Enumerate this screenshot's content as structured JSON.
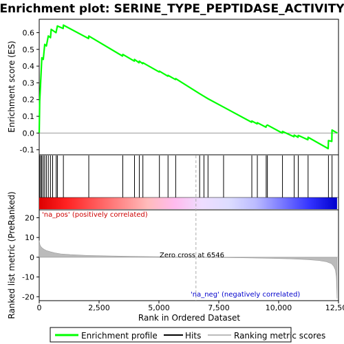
{
  "chart_data": {
    "type": "line",
    "title": "Enrichment plot: SERINE_TYPE_PEPTIDASE_ACTIVITY",
    "xlabel": "Rank in Ordered Dataset",
    "top_ylabel": "Enrichment score (ES)",
    "bottom_ylabel": "Ranked list metric (PreRanked)",
    "x_range": [
      0,
      12500
    ],
    "x_ticks": [
      0,
      2500,
      5000,
      7500,
      10000,
      12500
    ],
    "x_tick_labels": [
      "0",
      "2,500",
      "5,000",
      "7,500",
      "10,000",
      "12,500"
    ],
    "es_range": [
      -0.13,
      0.68
    ],
    "es_ticks": [
      -0.1,
      0.0,
      0.1,
      0.2,
      0.3,
      0.4,
      0.5,
      0.6
    ],
    "es_tick_labels": [
      "-0.1",
      "0.0",
      "0.1",
      "0.2",
      "0.3",
      "0.4",
      "0.5",
      "0.6"
    ],
    "metric_range": [
      -22,
      24
    ],
    "metric_ticks": [
      -20,
      -10,
      0,
      10,
      20
    ],
    "metric_tick_labels": [
      "-20",
      "-10",
      "0",
      "10",
      "20"
    ],
    "zero_cross_rank": 6546,
    "zero_cross_label": "Zero cross at 6546",
    "pos_label": "'na_pos' (positively correlated)",
    "neg_label": "'na_neg' (negatively correlated)",
    "legend": [
      {
        "name": "Enrichment profile",
        "color": "#00ff00"
      },
      {
        "name": "Hits",
        "color": "#000000"
      },
      {
        "name": "Ranking metric scores",
        "color": "#bbbbbb"
      }
    ],
    "hits": [
      20,
      70,
      110,
      170,
      230,
      300,
      380,
      470,
      560,
      710,
      760,
      1010,
      2070,
      3490,
      3980,
      4180,
      4330,
      5020,
      5380,
      5700,
      6700,
      6880,
      7050,
      7700,
      8880,
      9110,
      9480,
      9530,
      10160,
      10650,
      10820,
      11230,
      12080,
      12230
    ],
    "es_profile": [
      {
        "x": 0,
        "y": 0.0
      },
      {
        "x": 20,
        "y": 0.19
      },
      {
        "x": 70,
        "y": 0.33
      },
      {
        "x": 110,
        "y": 0.45
      },
      {
        "x": 170,
        "y": 0.44
      },
      {
        "x": 230,
        "y": 0.53
      },
      {
        "x": 300,
        "y": 0.52
      },
      {
        "x": 380,
        "y": 0.58
      },
      {
        "x": 470,
        "y": 0.57
      },
      {
        "x": 500,
        "y": 0.62
      },
      {
        "x": 700,
        "y": 0.6
      },
      {
        "x": 760,
        "y": 0.64
      },
      {
        "x": 1000,
        "y": 0.625
      },
      {
        "x": 1010,
        "y": 0.645
      },
      {
        "x": 2060,
        "y": 0.565
      },
      {
        "x": 2070,
        "y": 0.58
      },
      {
        "x": 3480,
        "y": 0.46
      },
      {
        "x": 3490,
        "y": 0.47
      },
      {
        "x": 3970,
        "y": 0.43
      },
      {
        "x": 3980,
        "y": 0.44
      },
      {
        "x": 4170,
        "y": 0.42
      },
      {
        "x": 4180,
        "y": 0.43
      },
      {
        "x": 4320,
        "y": 0.415
      },
      {
        "x": 4330,
        "y": 0.42
      },
      {
        "x": 5010,
        "y": 0.365
      },
      {
        "x": 5020,
        "y": 0.37
      },
      {
        "x": 5370,
        "y": 0.34
      },
      {
        "x": 5380,
        "y": 0.345
      },
      {
        "x": 5690,
        "y": 0.32
      },
      {
        "x": 5700,
        "y": 0.325
      },
      {
        "x": 6700,
        "y": 0.235
      },
      {
        "x": 6880,
        "y": 0.22
      },
      {
        "x": 7050,
        "y": 0.205
      },
      {
        "x": 7700,
        "y": 0.155
      },
      {
        "x": 8870,
        "y": 0.065
      },
      {
        "x": 8880,
        "y": 0.072
      },
      {
        "x": 9100,
        "y": 0.055
      },
      {
        "x": 9110,
        "y": 0.062
      },
      {
        "x": 9470,
        "y": 0.035
      },
      {
        "x": 9480,
        "y": 0.042
      },
      {
        "x": 9530,
        "y": 0.048
      },
      {
        "x": 10150,
        "y": 0.0
      },
      {
        "x": 10160,
        "y": 0.01
      },
      {
        "x": 10640,
        "y": -0.022
      },
      {
        "x": 10650,
        "y": -0.012
      },
      {
        "x": 10810,
        "y": -0.025
      },
      {
        "x": 10820,
        "y": -0.014
      },
      {
        "x": 11220,
        "y": -0.04
      },
      {
        "x": 11230,
        "y": -0.025
      },
      {
        "x": 12070,
        "y": -0.093
      },
      {
        "x": 12080,
        "y": -0.045
      },
      {
        "x": 12220,
        "y": -0.05
      },
      {
        "x": 12230,
        "y": 0.018
      },
      {
        "x": 12450,
        "y": 0.0
      }
    ],
    "metric_profile": [
      {
        "x": 0,
        "y": 8.5
      },
      {
        "x": 25,
        "y": 6.5
      },
      {
        "x": 60,
        "y": 5.5
      },
      {
        "x": 120,
        "y": 4.7
      },
      {
        "x": 200,
        "y": 4.0
      },
      {
        "x": 300,
        "y": 3.4
      },
      {
        "x": 450,
        "y": 2.8
      },
      {
        "x": 650,
        "y": 2.2
      },
      {
        "x": 900,
        "y": 1.7
      },
      {
        "x": 1300,
        "y": 1.3
      },
      {
        "x": 2000,
        "y": 0.9
      },
      {
        "x": 3000,
        "y": 0.6
      },
      {
        "x": 4000,
        "y": 0.4
      },
      {
        "x": 5000,
        "y": 0.25
      },
      {
        "x": 6000,
        "y": 0.1
      },
      {
        "x": 6546,
        "y": 0.0
      },
      {
        "x": 7500,
        "y": -0.15
      },
      {
        "x": 8500,
        "y": -0.3
      },
      {
        "x": 9500,
        "y": -0.5
      },
      {
        "x": 10500,
        "y": -0.8
      },
      {
        "x": 11200,
        "y": -1.2
      },
      {
        "x": 11700,
        "y": -1.7
      },
      {
        "x": 12000,
        "y": -2.3
      },
      {
        "x": 12200,
        "y": -3.2
      },
      {
        "x": 12300,
        "y": -4.5
      },
      {
        "x": 12370,
        "y": -6.5
      },
      {
        "x": 12410,
        "y": -10
      },
      {
        "x": 12440,
        "y": -21
      }
    ],
    "heat_bar_colors": [
      "#dd0000",
      "#ff2222",
      "#ff5555",
      "#ff8888",
      "#ffbbbb",
      "#ffbbee",
      "#eeddff",
      "#ddddff",
      "#bbbbff",
      "#7777ff",
      "#3333ff",
      "#0000cc"
    ]
  }
}
